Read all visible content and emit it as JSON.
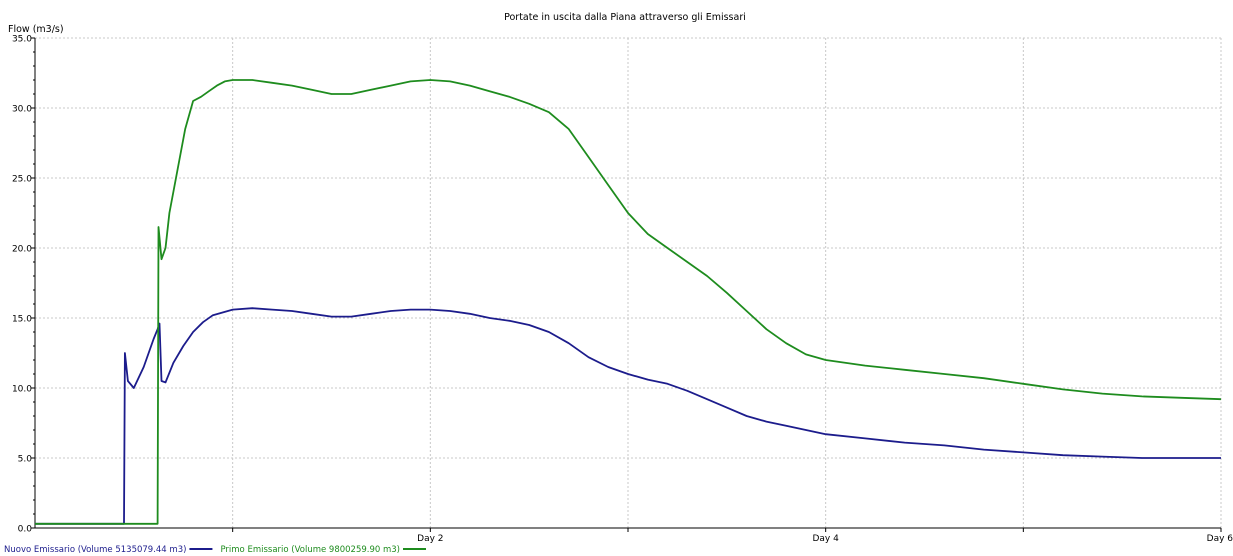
{
  "chart_data": {
    "type": "line",
    "title": "Portate in uscita dalla Piana attraverso gli Emissari",
    "ylabel": "Flow (m3/s)",
    "xlabel": "",
    "xlim": [
      0,
      6
    ],
    "ylim": [
      0,
      35
    ],
    "grid": true,
    "legend_position": "bottom-left",
    "x_ticks": [
      {
        "value": 2,
        "label": "Day 2"
      },
      {
        "value": 4,
        "label": "Day 4"
      },
      {
        "value": 6,
        "label": "Day 6"
      }
    ],
    "y_ticks": [
      {
        "value": 0,
        "label": "0.0"
      },
      {
        "value": 5,
        "label": "5.0"
      },
      {
        "value": 10,
        "label": "10.0"
      },
      {
        "value": 15,
        "label": "15.0"
      },
      {
        "value": 20,
        "label": "20.0"
      },
      {
        "value": 25,
        "label": "25.0"
      },
      {
        "value": 30,
        "label": "30.0"
      },
      {
        "value": 35,
        "label": "35.0"
      }
    ],
    "series": [
      {
        "name": "Nuovo Emissario (Volume 5135079.44 m3)",
        "color": "#1c1c8c",
        "x": [
          0,
          0.45,
          0.455,
          0.47,
          0.5,
          0.55,
          0.6,
          0.62,
          0.63,
          0.64,
          0.66,
          0.7,
          0.75,
          0.8,
          0.85,
          0.9,
          1.0,
          1.1,
          1.2,
          1.3,
          1.4,
          1.5,
          1.6,
          1.7,
          1.8,
          1.9,
          2.0,
          2.1,
          2.2,
          2.3,
          2.4,
          2.5,
          2.6,
          2.7,
          2.8,
          2.9,
          3.0,
          3.1,
          3.2,
          3.3,
          3.4,
          3.5,
          3.6,
          3.7,
          3.8,
          3.9,
          4.0,
          4.2,
          4.4,
          4.6,
          4.8,
          5.0,
          5.2,
          5.4,
          5.6,
          5.8,
          6.0
        ],
        "y": [
          0.3,
          0.3,
          12.5,
          10.5,
          10.0,
          11.5,
          13.5,
          14.2,
          14.6,
          10.5,
          10.4,
          11.8,
          13.0,
          14.0,
          14.7,
          15.2,
          15.6,
          15.7,
          15.6,
          15.5,
          15.3,
          15.1,
          15.1,
          15.3,
          15.5,
          15.6,
          15.6,
          15.5,
          15.3,
          15.0,
          14.8,
          14.5,
          14.0,
          13.2,
          12.2,
          11.5,
          11.0,
          10.6,
          10.3,
          9.8,
          9.2,
          8.6,
          8.0,
          7.6,
          7.3,
          7.0,
          6.7,
          6.4,
          6.1,
          5.9,
          5.6,
          5.4,
          5.2,
          5.1,
          5.0,
          5.0,
          5.0
        ]
      },
      {
        "name": "Primo Emissario (Volume 9800259.90 m3)",
        "color": "#1e8c1e",
        "x": [
          0,
          0.5,
          0.62,
          0.625,
          0.64,
          0.66,
          0.68,
          0.72,
          0.76,
          0.8,
          0.84,
          0.88,
          0.92,
          0.96,
          1.0,
          1.1,
          1.2,
          1.3,
          1.4,
          1.5,
          1.6,
          1.7,
          1.8,
          1.9,
          2.0,
          2.1,
          2.2,
          2.3,
          2.4,
          2.5,
          2.6,
          2.7,
          2.8,
          2.9,
          3.0,
          3.1,
          3.2,
          3.3,
          3.4,
          3.5,
          3.6,
          3.7,
          3.8,
          3.9,
          4.0,
          4.2,
          4.4,
          4.6,
          4.8,
          5.0,
          5.2,
          5.4,
          5.6,
          5.8,
          6.0
        ],
        "y": [
          0.3,
          0.3,
          0.3,
          21.5,
          19.2,
          20.0,
          22.5,
          25.5,
          28.5,
          30.5,
          30.8,
          31.2,
          31.6,
          31.9,
          32.0,
          32.0,
          31.8,
          31.6,
          31.3,
          31.0,
          31.0,
          31.3,
          31.6,
          31.9,
          32.0,
          31.9,
          31.6,
          31.2,
          30.8,
          30.3,
          29.7,
          28.5,
          26.5,
          24.5,
          22.5,
          21.0,
          20.0,
          19.0,
          18.0,
          16.8,
          15.5,
          14.2,
          13.2,
          12.4,
          12.0,
          11.6,
          11.3,
          11.0,
          10.7,
          10.3,
          9.9,
          9.6,
          9.4,
          9.3,
          9.2
        ]
      }
    ]
  }
}
